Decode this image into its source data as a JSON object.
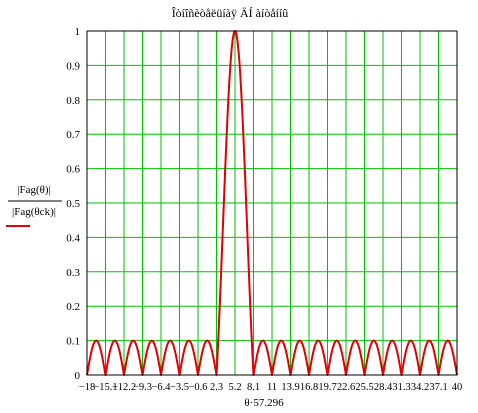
{
  "chart_data": {
    "type": "line",
    "title": "Îòíîñèòåëüíàÿ ÄÍ àíòåííû",
    "xlabel": "θ·57.296",
    "ylabel_numerator": "|Fag(θ)|",
    "ylabel_denominator": "|Fag(θck)|",
    "xlim": [
      -18,
      40
    ],
    "ylim": [
      0,
      1
    ],
    "y_ticks": [
      "0",
      "0.1",
      "0.2",
      "0.3",
      "0.4",
      "0.5",
      "0.6",
      "0.7",
      "0.8",
      "0.9",
      "1"
    ],
    "x_tick_labels": [
      "−18",
      "−15.1",
      "−12.2",
      "−9.3",
      "−6.4",
      "−3.5",
      "−0.6",
      "2.3",
      "5.2",
      "8.1",
      "11",
      "13.9",
      "16.8",
      "19.7",
      "22.6",
      "25.5",
      "28.4",
      "31.3",
      "34.2",
      "37.1",
      "40"
    ],
    "x_tick_values": [
      -18,
      -15.1,
      -12.2,
      -9.3,
      -6.4,
      -3.5,
      -0.6,
      2.3,
      5.2,
      8.1,
      11,
      13.9,
      16.8,
      19.7,
      22.6,
      25.5,
      28.4,
      31.3,
      34.2,
      37.1,
      40
    ],
    "grid": true,
    "colors": {
      "grid": "#00c000",
      "series": "#e00000",
      "frame": "#000000"
    },
    "series": [
      {
        "main_lobe": {
          "peak_x": 5.2,
          "peak_y": 1.0,
          "null_left_x": 2.3,
          "null_right_x": 8.1
        },
        "side_lobe_peak": 0.1,
        "side_lobe_width": 2.9
      }
    ]
  }
}
